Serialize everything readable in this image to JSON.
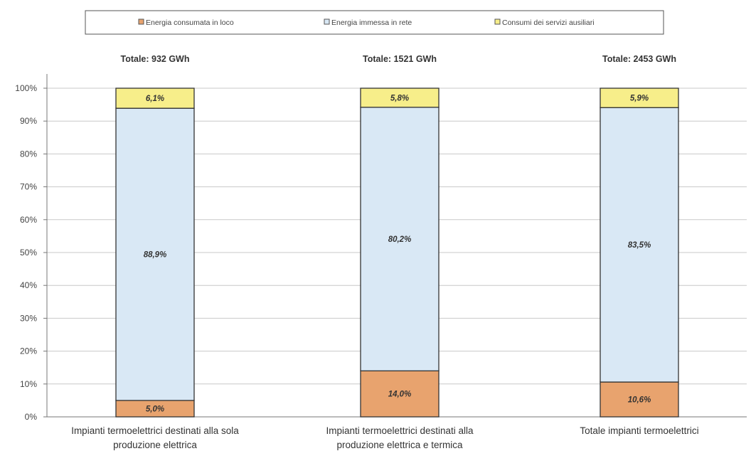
{
  "chart_data": {
    "type": "bar",
    "stacked": true,
    "percent_stacked": true,
    "categories": [
      [
        "Impianti termoelettrici destinati alla sola",
        "produzione elettrica"
      ],
      [
        "Impianti termoelettrici destinati alla",
        "produzione elettrica e termica"
      ],
      [
        "Totale impianti termoelettrici"
      ]
    ],
    "totals": [
      "Totale: 932 GWh",
      "Totale: 1521 GWh",
      "Totale: 2453 GWh"
    ],
    "series": [
      {
        "name": "Energia consumata in loco",
        "values": [
          5.0,
          14.0,
          10.6
        ],
        "labels": [
          "5,0%",
          "14,0%",
          "10,6%"
        ],
        "color": "#e8a36e"
      },
      {
        "name": "Energia immessa in rete",
        "values": [
          88.9,
          80.2,
          83.5
        ],
        "labels": [
          "88,9%",
          "80,2%",
          "83,5%"
        ],
        "color": "#d9e8f5"
      },
      {
        "name": "Consumi dei servizi ausiliari",
        "values": [
          6.1,
          5.8,
          5.9
        ],
        "labels": [
          "6,1%",
          "5,8%",
          "5,9%"
        ],
        "color": "#f7ee8a"
      }
    ],
    "y_ticks": [
      "0%",
      "10%",
      "20%",
      "30%",
      "40%",
      "50%",
      "60%",
      "70%",
      "80%",
      "90%",
      "100%"
    ],
    "ylim": [
      0,
      100
    ],
    "grid": true,
    "legend_position": "top"
  }
}
